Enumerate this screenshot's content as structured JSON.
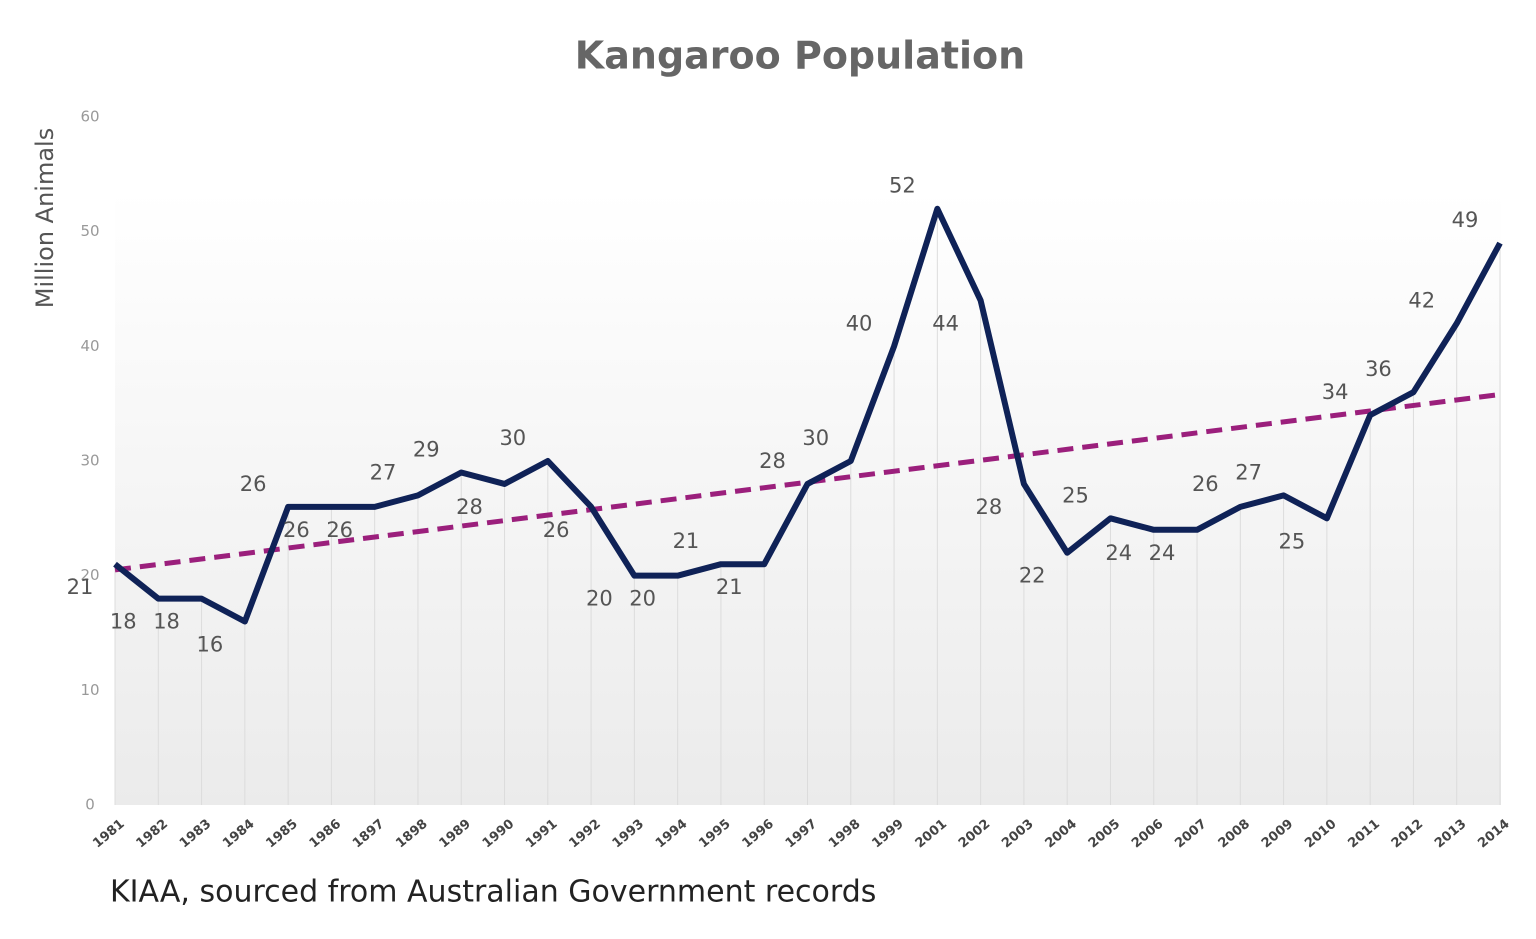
{
  "chart_data": {
    "type": "line",
    "title": "Kangaroo Population",
    "y_label": "Million Animals",
    "source": "KIAA, sourced from Australian Government records",
    "categories": [
      "1981",
      "1982",
      "1983",
      "1984",
      "1985",
      "1986",
      "1897",
      "1898",
      "1989",
      "1990",
      "1991",
      "1992",
      "1993",
      "1994",
      "1995",
      "1996",
      "1997",
      "1998",
      "1999",
      "2001",
      "2002",
      "2003",
      "2004",
      "2005",
      "2006",
      "2007",
      "2008",
      "2009",
      "2010",
      "2011",
      "2012",
      "2013",
      "2014"
    ],
    "series": [
      {
        "color": "#0f2257",
        "values": [
          21,
          18,
          18,
          16,
          26,
          26,
          26,
          27,
          29,
          28,
          30,
          26,
          20,
          20,
          21,
          21,
          28,
          30,
          40,
          52,
          44,
          28,
          22,
          25,
          24,
          24,
          26,
          27,
          25,
          34,
          36,
          42,
          49
        ]
      }
    ],
    "trendline": {
      "color": "#9b1f7c",
      "values": [
        20.5,
        35.8
      ]
    },
    "ylim": [
      0,
      60
    ],
    "yticks": [
      0,
      10,
      20,
      30,
      40,
      50,
      60
    ]
  }
}
